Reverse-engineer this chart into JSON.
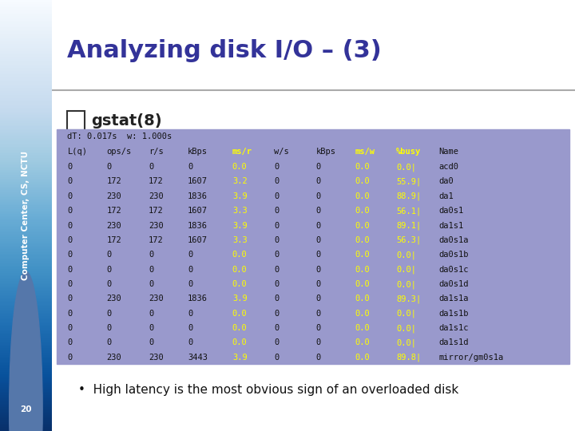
{
  "title": "Analyzing disk I/O – (3)",
  "subtitle": "gstat(8)",
  "bullet": "High latency is the most obvious sign of an overloaded disk",
  "slide_number": "20",
  "bg_color": "#ffffff",
  "left_bar_color": "#6699cc",
  "title_color": "#333399",
  "table_bg": "#9999cc",
  "table_header_color": "#ffff00",
  "table_text_color": "#000000",
  "table_name_color": "#000033",
  "dT_line": "dT: 0.017s  w: 1.000s",
  "header": [
    "L(q)",
    "ops/s",
    "r/s",
    "kBps",
    "ms/r",
    "w/s",
    "kBps",
    "ms/w",
    "%busy",
    "Name"
  ],
  "rows": [
    [
      "0",
      "0",
      "0",
      "0",
      "0.0",
      "0",
      "0",
      "0.0",
      "0.0|",
      "acd0"
    ],
    [
      "0",
      "172",
      "172",
      "1607",
      "3.2",
      "0",
      "0",
      "0.0",
      "55.9|",
      "da0"
    ],
    [
      "0",
      "230",
      "230",
      "1836",
      "3.9",
      "0",
      "0",
      "0.0",
      "88.9|",
      "da1"
    ],
    [
      "0",
      "172",
      "172",
      "1607",
      "3.3",
      "0",
      "0",
      "0.0",
      "56.1|",
      "da0s1"
    ],
    [
      "0",
      "230",
      "230",
      "1836",
      "3.9",
      "0",
      "0",
      "0.0",
      "89.1|",
      "da1s1"
    ],
    [
      "0",
      "172",
      "172",
      "1607",
      "3.3",
      "0",
      "0",
      "0.0",
      "56.3|",
      "da0s1a"
    ],
    [
      "0",
      "0",
      "0",
      "0",
      "0.0",
      "0",
      "0",
      "0.0",
      "0.0|",
      "da0s1b"
    ],
    [
      "0",
      "0",
      "0",
      "0",
      "0.0",
      "0",
      "0",
      "0.0",
      "0.0|",
      "da0s1c"
    ],
    [
      "0",
      "0",
      "0",
      "0",
      "0.0",
      "0",
      "0",
      "0.0",
      "0.0|",
      "da0s1d"
    ],
    [
      "0",
      "230",
      "230",
      "1836",
      "3.9",
      "0",
      "0",
      "0.0",
      "89.3|",
      "da1s1a"
    ],
    [
      "0",
      "0",
      "0",
      "0",
      "0.0",
      "0",
      "0",
      "0.0",
      "0.0|",
      "da1s1b"
    ],
    [
      "0",
      "0",
      "0",
      "0",
      "0.0",
      "0",
      "0",
      "0.0",
      "0.0|",
      "da1s1c"
    ],
    [
      "0",
      "0",
      "0",
      "0",
      "0.0",
      "0",
      "0",
      "0.0",
      "0.0|",
      "da1s1d"
    ],
    [
      "0",
      "230",
      "230",
      "3443",
      "3.9",
      "0",
      "0",
      "0.0",
      "89.8|",
      "mirror/gm0s1a"
    ]
  ]
}
